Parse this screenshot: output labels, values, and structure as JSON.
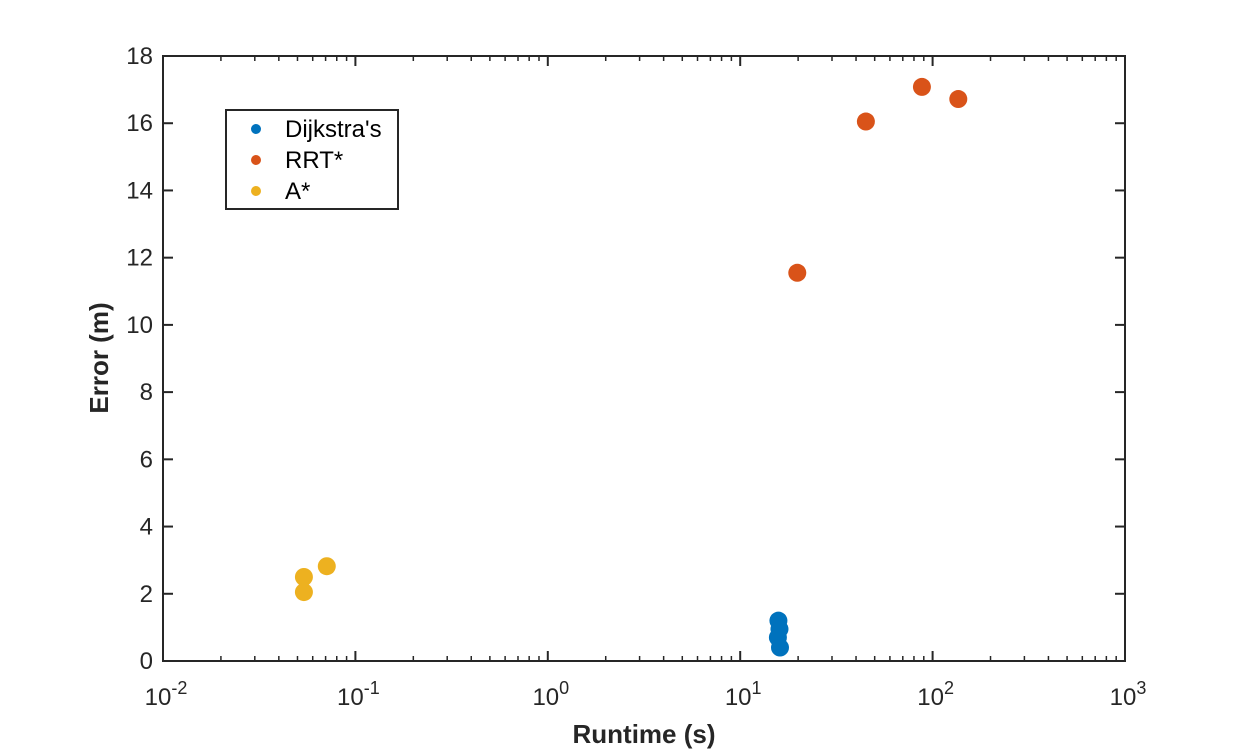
{
  "chart_data": {
    "type": "scatter",
    "title": "",
    "xlabel": "Runtime (s)",
    "ylabel": "Error (m)",
    "xscale": "log",
    "xlim": [
      0.01,
      1000
    ],
    "ylim": [
      0,
      18
    ],
    "x_ticks": [
      {
        "base": "10",
        "exp": "-2",
        "value": 0.01
      },
      {
        "base": "10",
        "exp": "-1",
        "value": 0.1
      },
      {
        "base": "10",
        "exp": "0",
        "value": 1
      },
      {
        "base": "10",
        "exp": "1",
        "value": 10
      },
      {
        "base": "10",
        "exp": "2",
        "value": 100
      },
      {
        "base": "10",
        "exp": "3",
        "value": 1000
      }
    ],
    "y_ticks": [
      0,
      2,
      4,
      6,
      8,
      10,
      12,
      14,
      16,
      18
    ],
    "grid": false,
    "legend_position": "top-left",
    "series": [
      {
        "name": "Dijkstra's",
        "color": "#0072BD",
        "points": [
          {
            "x": 15.8,
            "y": 1.2
          },
          {
            "x": 16.0,
            "y": 0.95
          },
          {
            "x": 15.7,
            "y": 0.7
          },
          {
            "x": 16.1,
            "y": 0.4
          }
        ]
      },
      {
        "name": "RRT*",
        "color": "#D95319",
        "points": [
          {
            "x": 19.8,
            "y": 11.55
          },
          {
            "x": 45,
            "y": 16.05
          },
          {
            "x": 88,
            "y": 17.08
          },
          {
            "x": 136,
            "y": 16.72
          }
        ]
      },
      {
        "name": "A*",
        "color": "#EDB120",
        "points": [
          {
            "x": 0.054,
            "y": 2.5
          },
          {
            "x": 0.054,
            "y": 2.05
          },
          {
            "x": 0.071,
            "y": 2.82
          }
        ]
      }
    ]
  }
}
